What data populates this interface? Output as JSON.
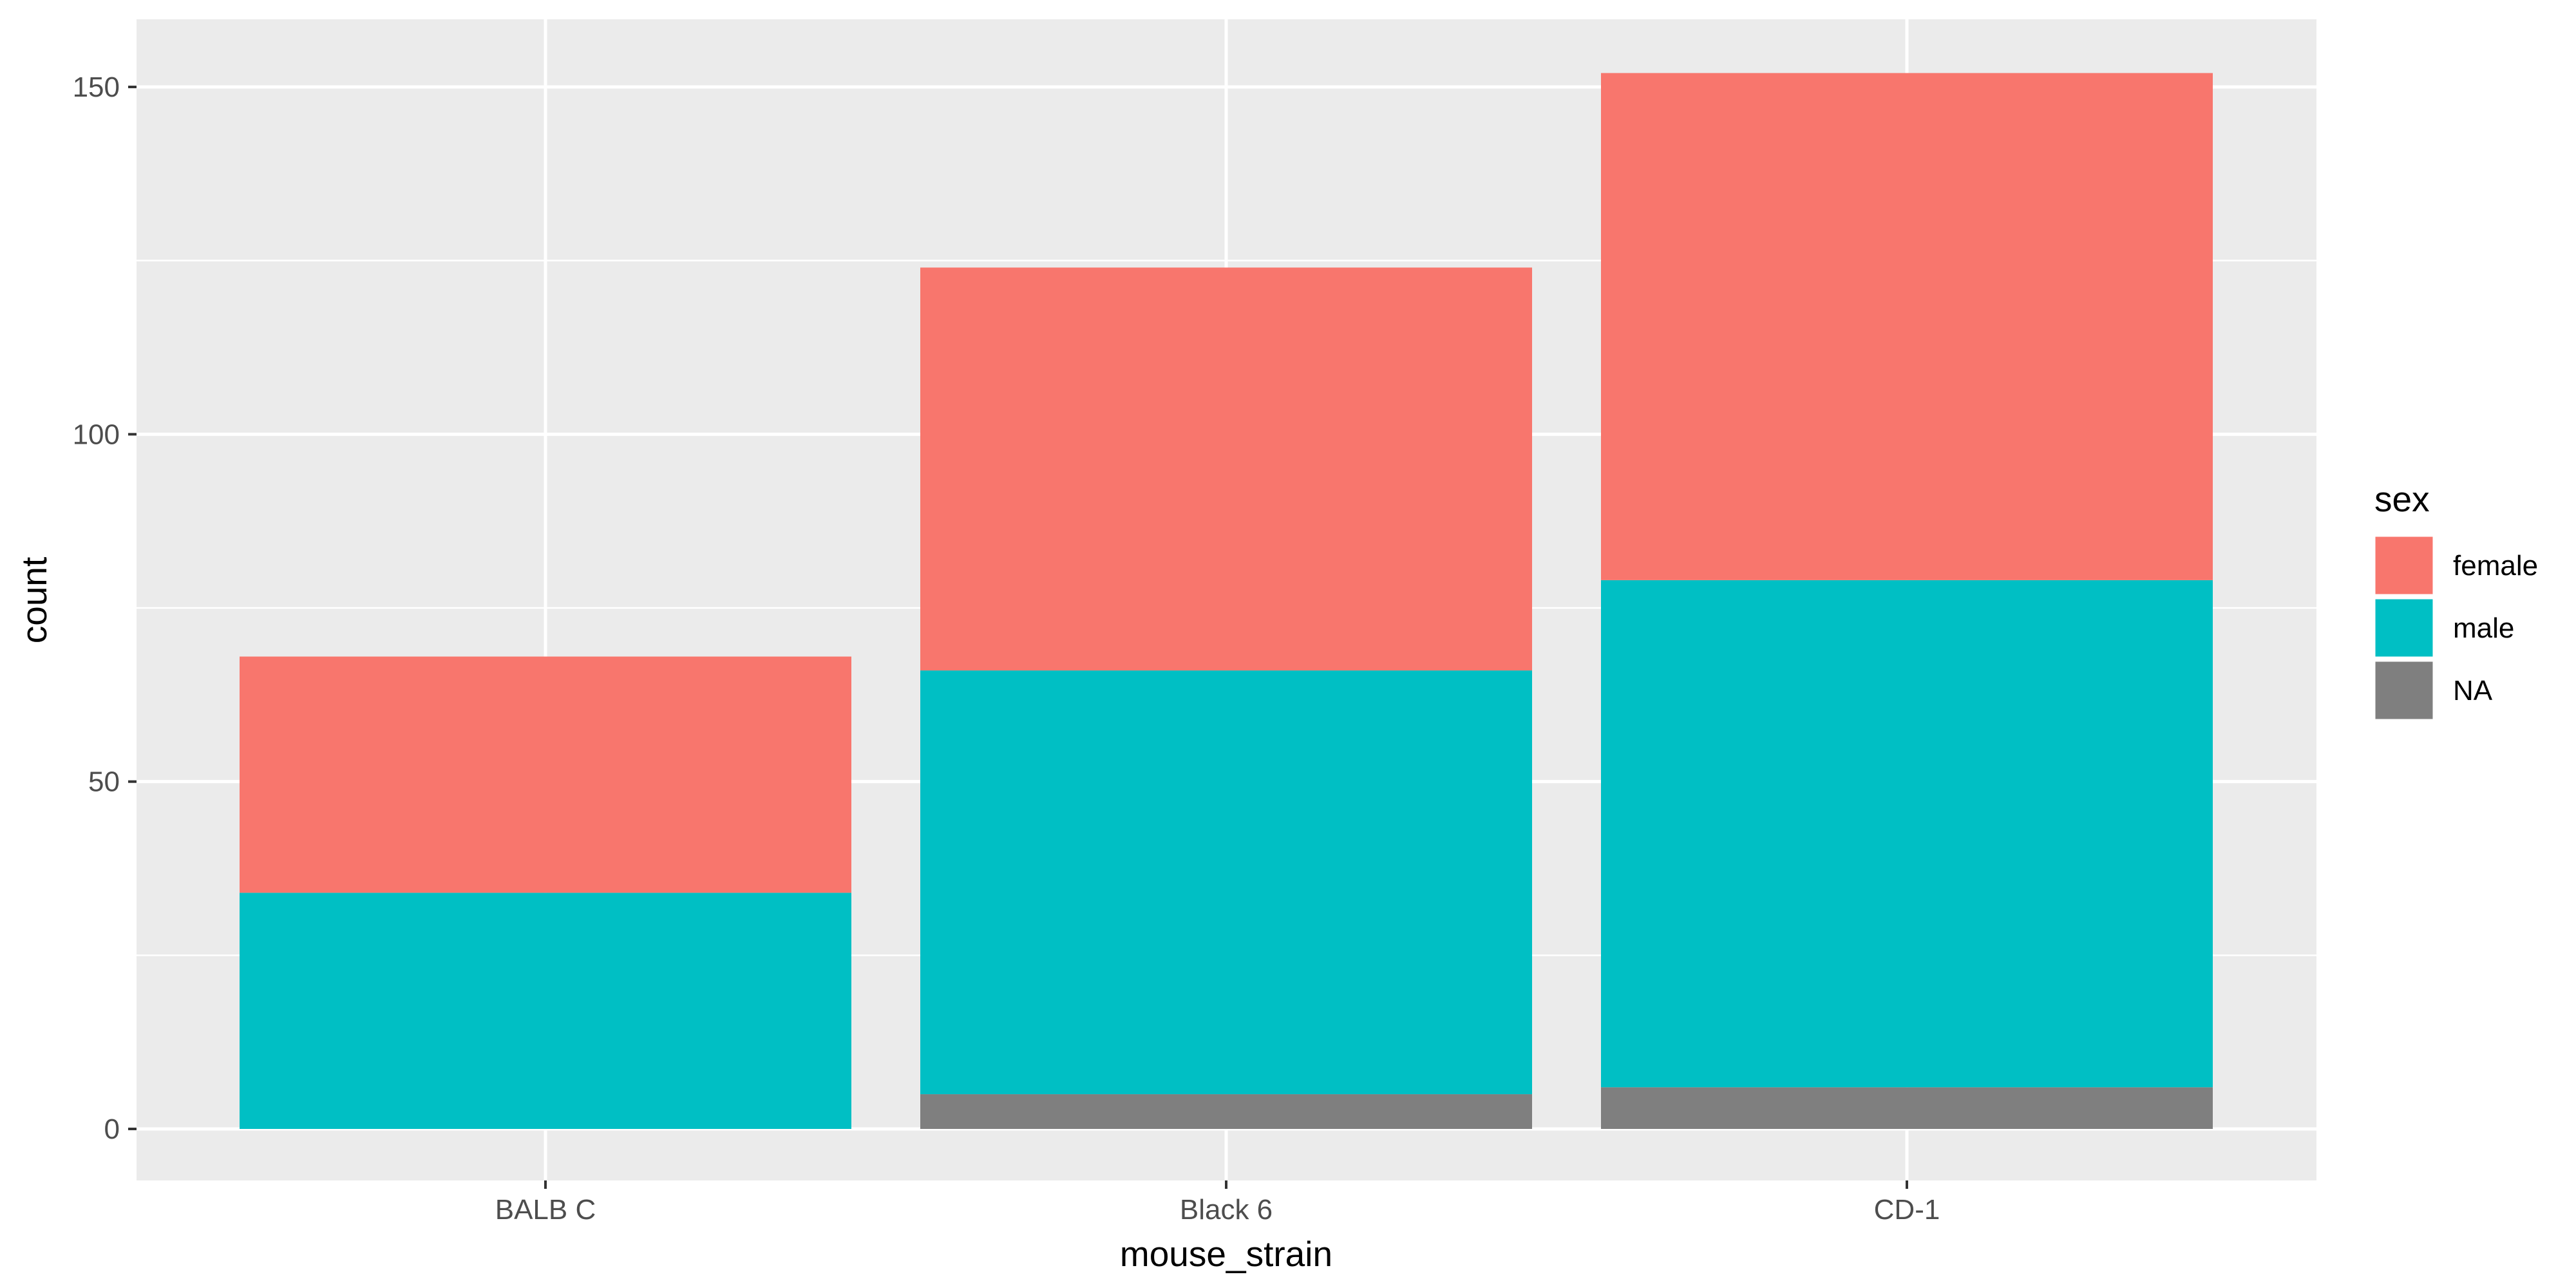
{
  "chart_data": {
    "type": "bar",
    "stacked": true,
    "categories": [
      "BALB C",
      "Black 6",
      "CD-1"
    ],
    "series": [
      {
        "name": "female",
        "values": [
          34,
          58,
          73
        ],
        "color": "#F8766D"
      },
      {
        "name": "male",
        "values": [
          34,
          61,
          73
        ],
        "color": "#00BFC4"
      },
      {
        "name": "NA",
        "values": [
          0,
          5,
          6
        ],
        "color": "#7F7F7F"
      }
    ],
    "stack_order_bottom_to_top": [
      "NA",
      "male",
      "female"
    ],
    "xlabel": "mouse_strain",
    "ylabel": "count",
    "ylim": [
      -15,
      160
    ],
    "yticks": [
      0,
      50,
      100,
      150
    ],
    "grid": true,
    "panel_background": "#EBEBEB",
    "grid_color": "#FFFFFF",
    "legend": {
      "title": "sex",
      "position": "right"
    }
  }
}
